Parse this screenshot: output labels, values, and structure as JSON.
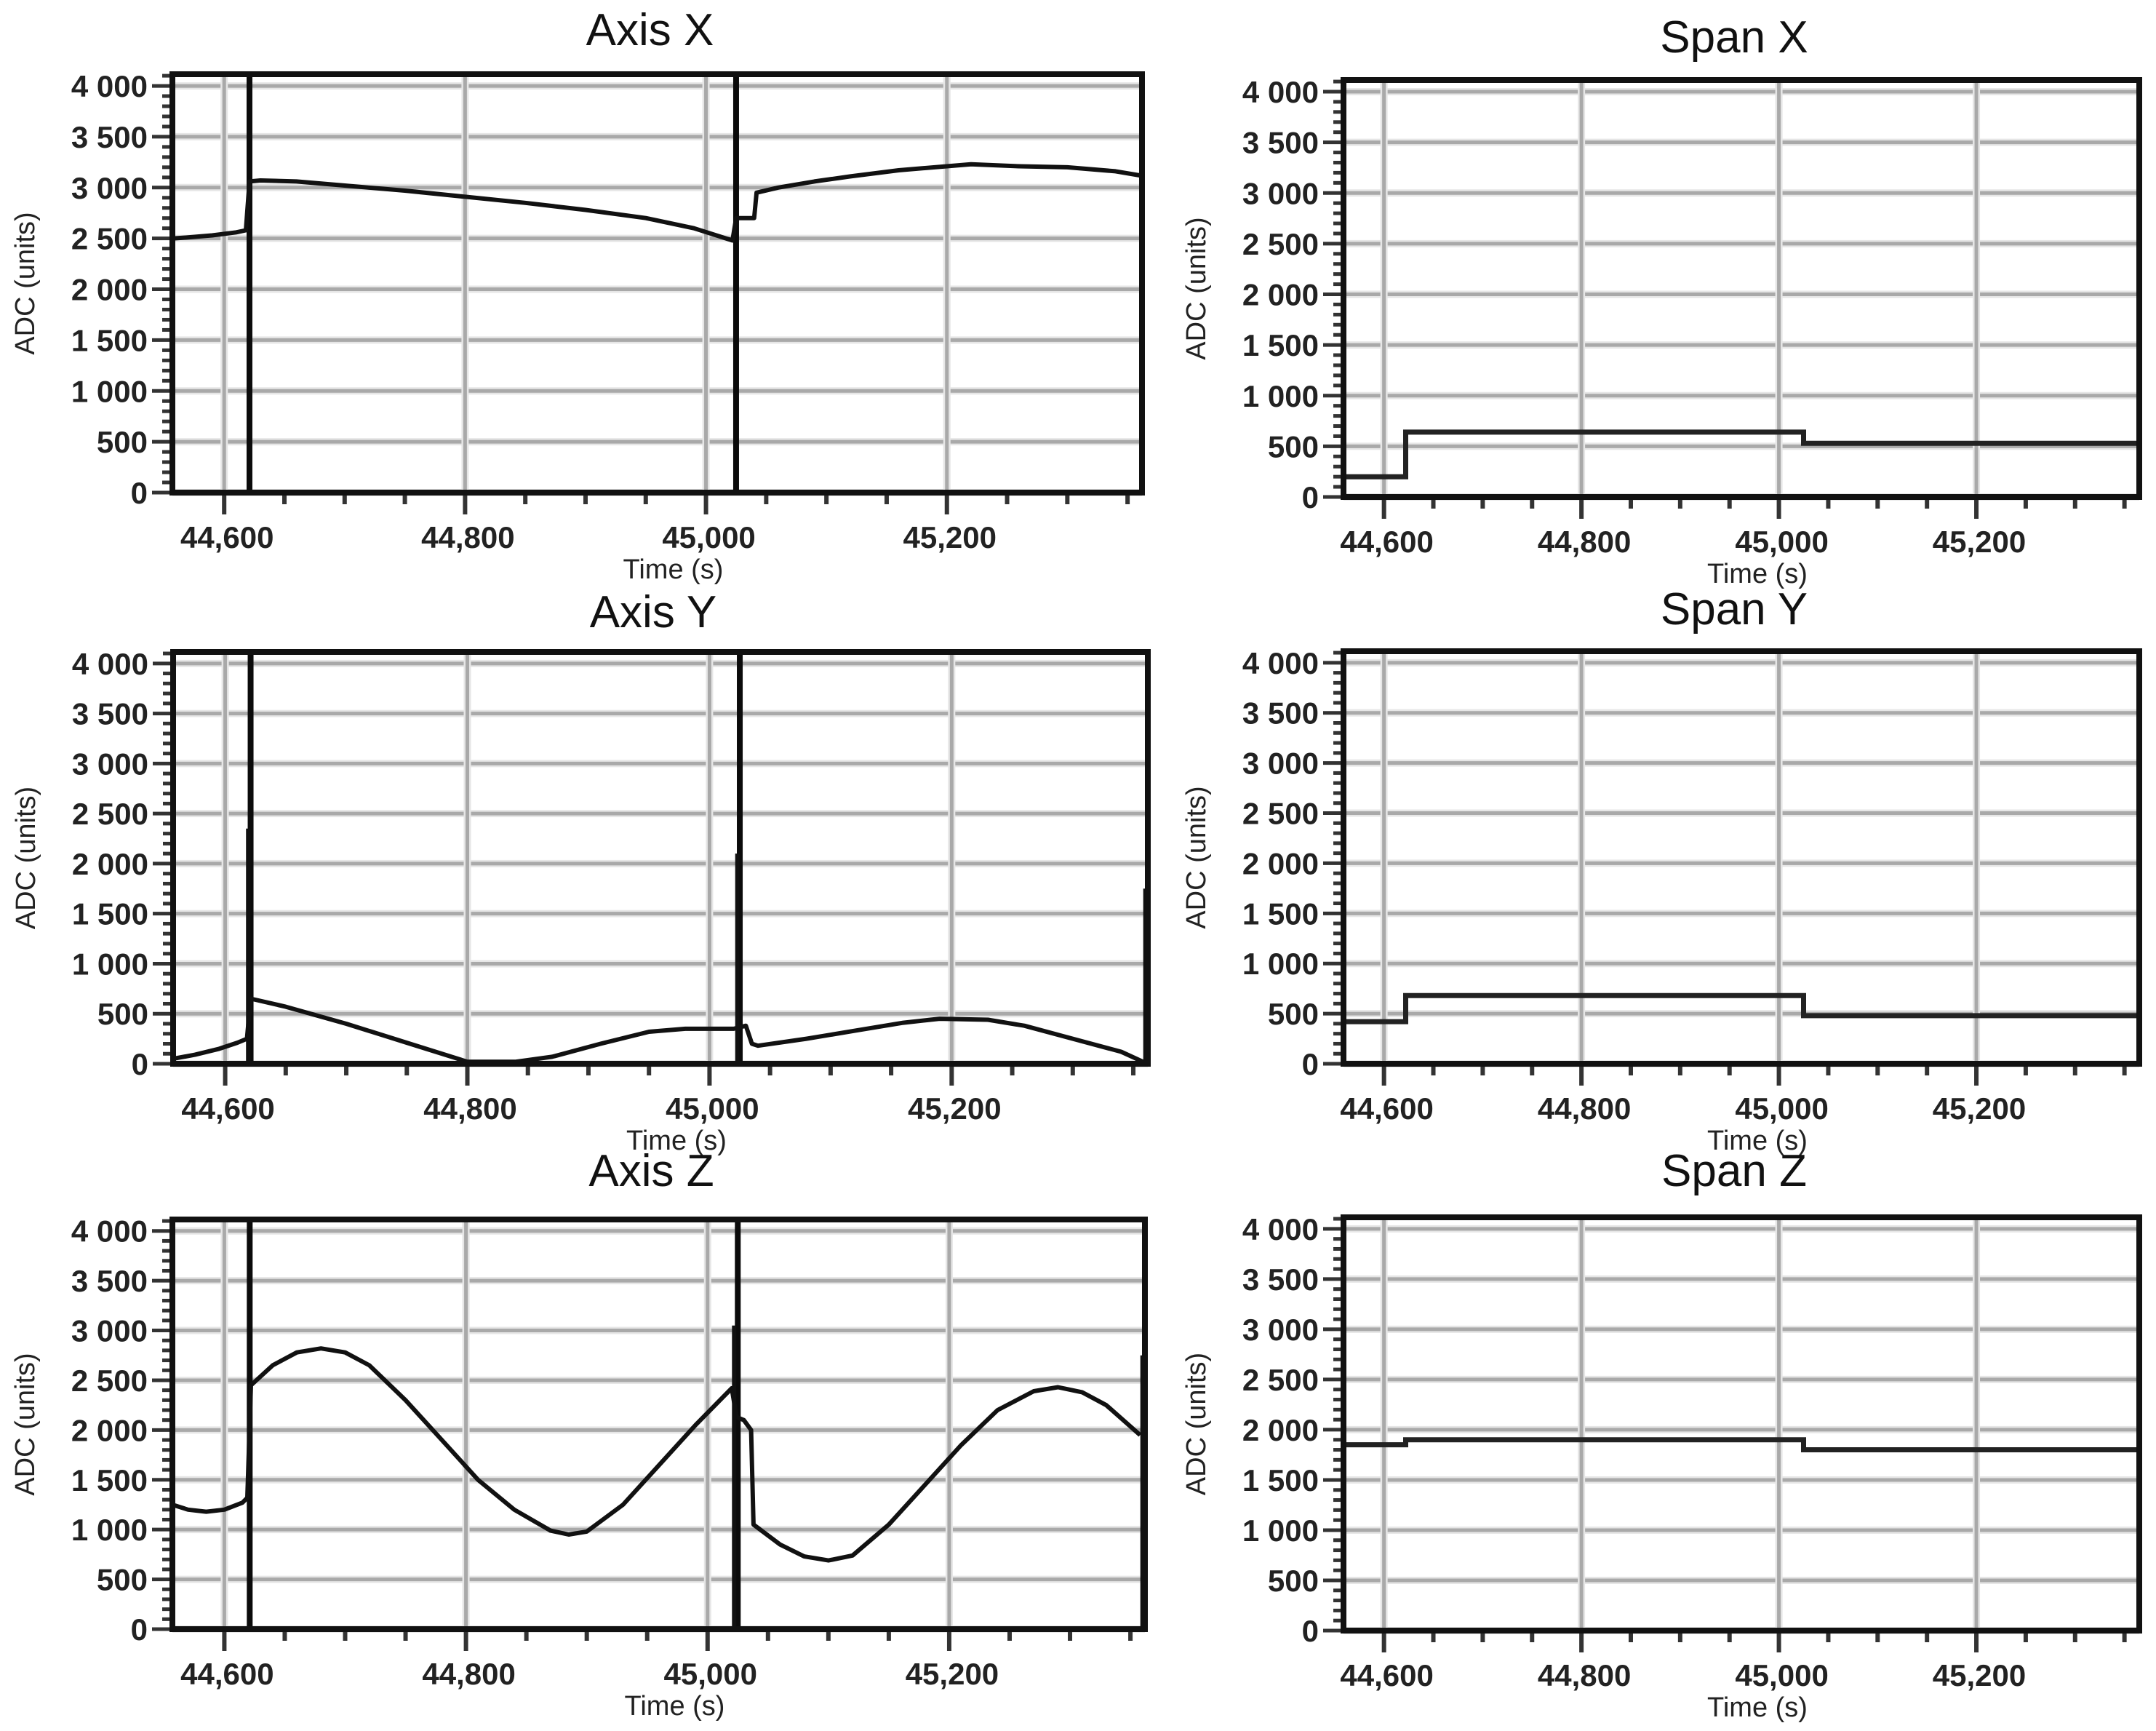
{
  "figure": {
    "panels_layout": "3 rows x 2 columns",
    "y_tick_labels": [
      "0",
      "500",
      "1 000",
      "1 500",
      "2 000",
      "2 500",
      "3 000",
      "3 500",
      "4 000"
    ],
    "x_tick_labels": [
      "44,600",
      "44,800",
      "45,000",
      "45,200"
    ],
    "xlabel": "Time (s)",
    "ylabel": "ADC (units)"
  },
  "chart_data": [
    {
      "id": "axis-x",
      "type": "line",
      "title": "Axis X",
      "xlabel": "Time (s)",
      "ylabel": "ADC (units)",
      "xlim": [
        44557,
        45362
      ],
      "ylim": [
        0,
        4115
      ],
      "xticks": [
        44600,
        44800,
        45000,
        45200
      ],
      "yticks": [
        0,
        500,
        1000,
        1500,
        2000,
        2500,
        3000,
        3500,
        4000
      ],
      "grid": true,
      "legend": null,
      "markers": [
        44621,
        45025
      ],
      "series": [
        {
          "name": "Axis X",
          "x": [
            44557,
            44570,
            44590,
            44610,
            44618,
            44621,
            44630,
            44660,
            44700,
            44750,
            44800,
            44850,
            44900,
            44950,
            44990,
            45022,
            45025,
            45040,
            45042,
            45060,
            45090,
            45120,
            45160,
            45200,
            45220,
            45260,
            45300,
            45340,
            45360
          ],
          "y": [
            2500,
            2510,
            2530,
            2560,
            2580,
            3060,
            3070,
            3060,
            3020,
            2970,
            2910,
            2850,
            2780,
            2700,
            2600,
            2480,
            2700,
            2700,
            2950,
            3000,
            3060,
            3110,
            3170,
            3210,
            3230,
            3210,
            3200,
            3160,
            3120
          ]
        }
      ]
    },
    {
      "id": "span-x",
      "type": "line",
      "title": "Span X",
      "xlabel": "Time (s)",
      "ylabel": "ADC (units)",
      "xlim": [
        44559,
        45365
      ],
      "ylim": [
        0,
        4115
      ],
      "xticks": [
        44600,
        44800,
        45000,
        45200
      ],
      "yticks": [
        0,
        500,
        1000,
        1500,
        2000,
        2500,
        3000,
        3500,
        4000
      ],
      "grid": true,
      "legend": null,
      "step": true,
      "series": [
        {
          "name": "Span X",
          "x": [
            44559,
            44622,
            44622,
            45025,
            45025,
            45365
          ],
          "y": [
            200,
            200,
            640,
            640,
            530,
            530
          ]
        }
      ]
    },
    {
      "id": "axis-y",
      "type": "line",
      "title": "Axis Y",
      "xlabel": "Time (s)",
      "ylabel": "ADC (units)",
      "xlim": [
        44557,
        45362
      ],
      "ylim": [
        0,
        4115
      ],
      "xticks": [
        44600,
        44800,
        45000,
        45200
      ],
      "yticks": [
        0,
        500,
        1000,
        1500,
        2000,
        2500,
        3000,
        3500,
        4000
      ],
      "grid": true,
      "legend": null,
      "markers": [
        44621,
        45025
      ],
      "spikes": [
        {
          "x": 44619,
          "y": 2350
        },
        {
          "x": 45023,
          "y": 2100
        },
        {
          "x": 45360,
          "y": 1750
        }
      ],
      "series": [
        {
          "name": "Axis Y",
          "x": [
            44557,
            44575,
            44595,
            44610,
            44618,
            44621,
            44625,
            44650,
            44700,
            44750,
            44800,
            44840,
            44870,
            44910,
            44950,
            44980,
            45020,
            45030,
            45035,
            45040,
            45080,
            45120,
            45160,
            45190,
            45230,
            45260,
            45300,
            45340,
            45358
          ],
          "y": [
            50,
            90,
            150,
            210,
            250,
            650,
            640,
            570,
            400,
            210,
            20,
            20,
            70,
            200,
            320,
            350,
            350,
            380,
            200,
            180,
            250,
            330,
            410,
            450,
            440,
            380,
            250,
            120,
            20
          ]
        }
      ]
    },
    {
      "id": "span-y",
      "type": "line",
      "title": "Span Y",
      "xlabel": "Time (s)",
      "ylabel": "ADC (units)",
      "xlim": [
        44559,
        45365
      ],
      "ylim": [
        0,
        4115
      ],
      "xticks": [
        44600,
        44800,
        45000,
        45200
      ],
      "yticks": [
        0,
        500,
        1000,
        1500,
        2000,
        2500,
        3000,
        3500,
        4000
      ],
      "grid": true,
      "legend": null,
      "step": true,
      "series": [
        {
          "name": "Span Y",
          "x": [
            44559,
            44622,
            44622,
            45025,
            45025,
            45365
          ],
          "y": [
            420,
            420,
            680,
            680,
            480,
            480
          ]
        }
      ]
    },
    {
      "id": "axis-z",
      "type": "line",
      "title": "Axis Z",
      "xlabel": "Time (s)",
      "ylabel": "ADC (units)",
      "xlim": [
        44557,
        45362
      ],
      "ylim": [
        0,
        4115
      ],
      "xticks": [
        44600,
        44800,
        45000,
        45200
      ],
      "yticks": [
        0,
        500,
        1000,
        1500,
        2000,
        2500,
        3000,
        3500,
        4000
      ],
      "grid": true,
      "legend": null,
      "markers": [
        44621,
        45025
      ],
      "spikes": [
        {
          "x": 45022,
          "y": 3050
        },
        {
          "x": 45360,
          "y": 2750
        }
      ],
      "series": [
        {
          "name": "Axis Z",
          "x": [
            44557,
            44570,
            44585,
            44600,
            44615,
            44619,
            44622,
            44640,
            44660,
            44680,
            44700,
            44720,
            44750,
            44780,
            44810,
            44840,
            44870,
            44885,
            44900,
            44930,
            44960,
            44990,
            45020,
            45024,
            45030,
            45036,
            45038,
            45060,
            45080,
            45100,
            45120,
            45150,
            45180,
            45210,
            45240,
            45270,
            45290,
            45310,
            45330,
            45358
          ],
          "y": [
            1250,
            1200,
            1180,
            1200,
            1270,
            1320,
            2450,
            2650,
            2780,
            2820,
            2780,
            2650,
            2300,
            1900,
            1500,
            1200,
            990,
            950,
            980,
            1250,
            1650,
            2050,
            2420,
            2130,
            2100,
            2000,
            1050,
            850,
            730,
            690,
            740,
            1050,
            1450,
            1850,
            2200,
            2390,
            2430,
            2380,
            2250,
            1950
          ]
        }
      ]
    },
    {
      "id": "span-z",
      "type": "line",
      "title": "Span Z",
      "xlabel": "Time (s)",
      "ylabel": "ADC (units)",
      "xlim": [
        44559,
        45365
      ],
      "ylim": [
        0,
        4115
      ],
      "xticks": [
        44600,
        44800,
        45000,
        45200
      ],
      "yticks": [
        0,
        500,
        1000,
        1500,
        2000,
        2500,
        3000,
        3500,
        4000
      ],
      "grid": true,
      "legend": null,
      "step": true,
      "series": [
        {
          "name": "Span Z",
          "x": [
            44559,
            44622,
            44622,
            45025,
            45025,
            45365
          ],
          "y": [
            1850,
            1850,
            1900,
            1900,
            1800,
            1800
          ]
        }
      ]
    }
  ]
}
